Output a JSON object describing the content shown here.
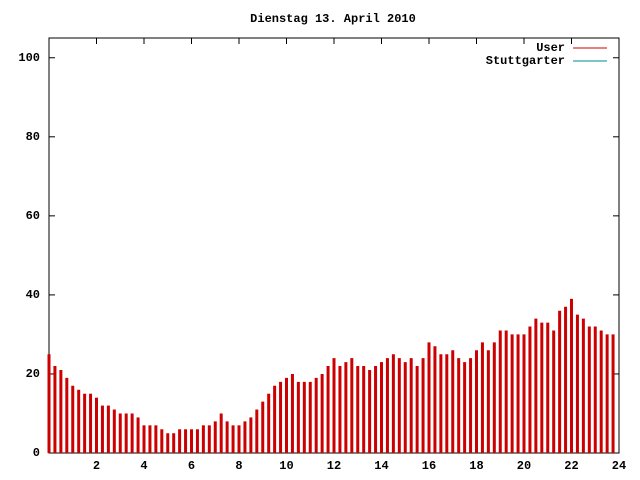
{
  "chart_data": {
    "type": "impulse",
    "title": "Dienstag 13. April 2010",
    "x": [
      0,
      0.25,
      0.5,
      0.75,
      1,
      1.25,
      1.5,
      1.75,
      2,
      2.25,
      2.5,
      2.75,
      3,
      3.25,
      3.5,
      3.75,
      4,
      4.25,
      4.5,
      4.75,
      5,
      5.25,
      5.5,
      5.75,
      6,
      6.25,
      6.5,
      6.75,
      7,
      7.25,
      7.5,
      7.75,
      8,
      8.25,
      8.5,
      8.75,
      9,
      9.25,
      9.5,
      9.75,
      10,
      10.25,
      10.5,
      10.75,
      11,
      11.25,
      11.5,
      11.75,
      12,
      12.25,
      12.5,
      12.75,
      13,
      13.25,
      13.5,
      13.75,
      14,
      14.25,
      14.5,
      14.75,
      15,
      15.25,
      15.5,
      15.75,
      16,
      16.25,
      16.5,
      16.75,
      17,
      17.25,
      17.5,
      17.75,
      18,
      18.25,
      18.5,
      18.75,
      19,
      19.25,
      19.5,
      19.75,
      20,
      20.25,
      20.5,
      20.75,
      21,
      21.25,
      21.5,
      21.75,
      22,
      22.25,
      22.5,
      22.75,
      23,
      23.25,
      23.5,
      23.75
    ],
    "series": [
      {
        "name": "User",
        "color": "#cc0000",
        "values": [
          25,
          22,
          21,
          19,
          17,
          16,
          15,
          15,
          14,
          12,
          12,
          11,
          10,
          10,
          10,
          9,
          7,
          7,
          7,
          6,
          5,
          5,
          6,
          6,
          6,
          6,
          7,
          7,
          8,
          10,
          8,
          7,
          7,
          8,
          9,
          11,
          13,
          15,
          17,
          18,
          19,
          20,
          18,
          18,
          18,
          19,
          20,
          22,
          24,
          22,
          23,
          24,
          22,
          22,
          21,
          22,
          23,
          24,
          25,
          24,
          23,
          24,
          22,
          24,
          28,
          27,
          25,
          25,
          26,
          24,
          23,
          24,
          26,
          28,
          26,
          28,
          31,
          31,
          30,
          30,
          30,
          32,
          34,
          33,
          33,
          31,
          36,
          37,
          39,
          35,
          34,
          32,
          32,
          31,
          30,
          30
        ]
      },
      {
        "name": "Stuttgarter",
        "color": "#008b8b",
        "values": [
          null,
          null,
          null,
          null,
          null,
          null,
          null,
          null,
          null,
          null,
          null,
          null,
          null,
          null,
          null,
          null,
          null,
          null,
          null,
          null,
          null,
          null,
          null,
          null,
          null,
          null,
          null,
          null,
          null,
          null,
          null,
          null,
          null,
          null,
          null,
          null,
          null,
          null,
          null,
          null,
          null,
          null,
          null,
          null,
          null,
          null,
          null,
          null,
          null,
          null,
          null,
          null,
          null,
          null,
          null,
          null,
          null,
          null,
          null,
          null,
          null,
          null,
          null,
          null,
          null,
          null,
          null,
          null,
          null,
          null,
          null,
          null,
          null,
          null,
          null,
          null,
          null,
          null,
          null,
          null,
          null,
          null,
          null,
          null,
          null,
          null,
          null,
          null,
          null,
          null,
          null,
          null,
          null,
          null,
          null,
          null
        ]
      }
    ],
    "xlim": [
      0,
      24
    ],
    "xticks": [
      2,
      4,
      6,
      8,
      10,
      12,
      14,
      16,
      18,
      20,
      22,
      24
    ],
    "ylim": [
      0,
      105
    ],
    "yticks": [
      0,
      20,
      40,
      60,
      80,
      100
    ],
    "legend": "top-right"
  }
}
